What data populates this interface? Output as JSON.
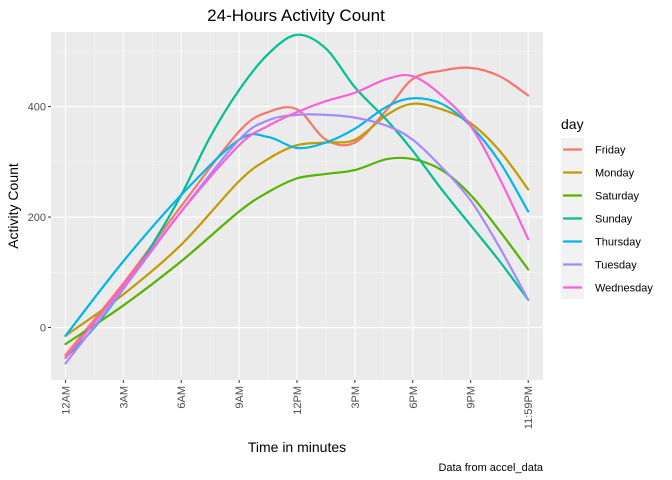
{
  "chart_data": {
    "type": "line",
    "title": "24-Hours Activity Count",
    "xlabel": "Time in minutes",
    "ylabel": "Activity Count",
    "caption": "Data from accel_data",
    "legend_title": "day",
    "legend_position": "right",
    "grid": true,
    "xlim": [
      -45,
      1485
    ],
    "ylim": [
      -95,
      535
    ],
    "x_ticks": [
      {
        "value": 0,
        "label": "12AM"
      },
      {
        "value": 180,
        "label": "3AM"
      },
      {
        "value": 360,
        "label": "6AM"
      },
      {
        "value": 540,
        "label": "9AM"
      },
      {
        "value": 720,
        "label": "12PM"
      },
      {
        "value": 900,
        "label": "3PM"
      },
      {
        "value": 1080,
        "label": "6PM"
      },
      {
        "value": 1260,
        "label": "9PM"
      },
      {
        "value": 1439,
        "label": "11:59PM"
      }
    ],
    "y_ticks": [
      {
        "value": 0,
        "label": "0"
      },
      {
        "value": 200,
        "label": "200"
      },
      {
        "value": 400,
        "label": "400"
      }
    ],
    "series": [
      {
        "name": "Friday",
        "color": "#F8766D",
        "x": [
          0,
          180,
          360,
          540,
          630,
          720,
          810,
          900,
          1000,
          1080,
          1170,
          1260,
          1350,
          1439
        ],
        "y": [
          -50,
          80,
          220,
          355,
          390,
          395,
          340,
          335,
          395,
          450,
          465,
          470,
          455,
          420
        ]
      },
      {
        "name": "Monday",
        "color": "#C49A00",
        "x": [
          0,
          180,
          360,
          540,
          630,
          720,
          810,
          900,
          1000,
          1080,
          1170,
          1260,
          1350,
          1439
        ],
        "y": [
          -15,
          60,
          150,
          265,
          305,
          330,
          335,
          340,
          385,
          405,
          395,
          370,
          320,
          250
        ]
      },
      {
        "name": "Saturday",
        "color": "#53B400",
        "x": [
          0,
          180,
          360,
          540,
          630,
          720,
          810,
          900,
          1000,
          1080,
          1170,
          1260,
          1350,
          1439
        ],
        "y": [
          -30,
          40,
          120,
          210,
          245,
          270,
          278,
          285,
          305,
          305,
          285,
          240,
          175,
          105
        ]
      },
      {
        "name": "Sunday",
        "color": "#00C094",
        "x": [
          0,
          90,
          180,
          270,
          360,
          450,
          540,
          630,
          720,
          810,
          900,
          1000,
          1080,
          1170,
          1260,
          1350,
          1439
        ],
        "y": [
          -55,
          0,
          70,
          150,
          240,
          345,
          430,
          495,
          530,
          505,
          435,
          375,
          320,
          250,
          185,
          120,
          50
        ]
      },
      {
        "name": "Thursday",
        "color": "#00B6EB",
        "x": [
          0,
          180,
          360,
          540,
          630,
          720,
          810,
          900,
          1000,
          1080,
          1170,
          1260,
          1350,
          1439
        ],
        "y": [
          -15,
          120,
          240,
          340,
          345,
          325,
          335,
          360,
          400,
          415,
          405,
          365,
          300,
          210
        ]
      },
      {
        "name": "Tuesday",
        "color": "#A58AFF",
        "x": [
          0,
          180,
          360,
          540,
          630,
          720,
          810,
          900,
          1000,
          1080,
          1170,
          1260,
          1350,
          1439
        ],
        "y": [
          -65,
          70,
          210,
          340,
          375,
          385,
          385,
          380,
          365,
          340,
          290,
          230,
          145,
          50
        ]
      },
      {
        "name": "Wednesday",
        "color": "#FB61D7",
        "x": [
          0,
          180,
          360,
          540,
          630,
          720,
          810,
          900,
          1000,
          1080,
          1170,
          1260,
          1350,
          1439
        ],
        "y": [
          -55,
          75,
          210,
          330,
          365,
          390,
          410,
          425,
          450,
          455,
          420,
          365,
          270,
          160
        ]
      }
    ]
  }
}
